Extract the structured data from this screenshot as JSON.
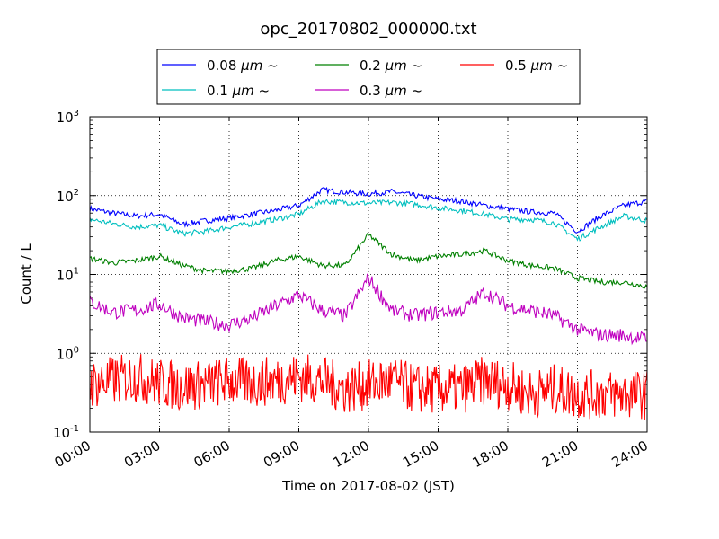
{
  "chart_data": {
    "type": "line",
    "title": "opc_20170802_000000.txt",
    "xlabel": "Time on 2017-08-02 (JST)",
    "ylabel": "Count / L",
    "yscale": "log",
    "ylim": [
      0.1,
      1000
    ],
    "xlim": [
      "00:00",
      "24:00"
    ],
    "grid": true,
    "legend_position": "top-center",
    "x_ticks": [
      "00:00",
      "03:00",
      "06:00",
      "09:00",
      "12:00",
      "15:00",
      "18:00",
      "21:00",
      "24:00"
    ],
    "y_ticks": [
      {
        "base": "10",
        "exp": "-1",
        "value": 0.1
      },
      {
        "base": "10",
        "exp": "0",
        "value": 1
      },
      {
        "base": "10",
        "exp": "1",
        "value": 10
      },
      {
        "base": "10",
        "exp": "2",
        "value": 100
      },
      {
        "base": "10",
        "exp": "3",
        "value": 1000
      }
    ],
    "x": [
      "00:00",
      "01:00",
      "02:00",
      "03:00",
      "04:00",
      "05:00",
      "06:00",
      "07:00",
      "08:00",
      "09:00",
      "10:00",
      "11:00",
      "12:00",
      "13:00",
      "14:00",
      "15:00",
      "16:00",
      "17:00",
      "18:00",
      "19:00",
      "20:00",
      "21:00",
      "22:00",
      "23:00",
      "24:00"
    ],
    "series": [
      {
        "name_prefix": "0.08 ",
        "name_suffix": " ~",
        "color": "#0000ff",
        "values": [
          68,
          60,
          55,
          58,
          43,
          48,
          52,
          58,
          65,
          75,
          118,
          110,
          105,
          112,
          100,
          90,
          85,
          75,
          68,
          62,
          60,
          35,
          55,
          75,
          85
        ]
      },
      {
        "name_prefix": "0.1 ",
        "name_suffix": " ~",
        "color": "#00bfbf",
        "values": [
          50,
          44,
          40,
          42,
          33,
          35,
          40,
          44,
          50,
          58,
          85,
          82,
          80,
          82,
          78,
          70,
          65,
          58,
          50,
          50,
          45,
          28,
          40,
          55,
          48
        ]
      },
      {
        "name_prefix": "0.2 ",
        "name_suffix": " ~",
        "color": "#008000",
        "values": [
          16,
          14,
          15,
          17,
          13,
          11,
          11,
          12,
          15,
          17,
          13,
          13,
          32,
          18,
          15,
          17,
          18,
          20,
          15,
          13,
          12,
          9,
          8,
          8,
          7
        ]
      },
      {
        "name_prefix": "0.3 ",
        "name_suffix": " ~",
        "color": "#bf00bf",
        "values": [
          4.5,
          3.3,
          3.5,
          4.2,
          2.8,
          2.5,
          2.3,
          2.8,
          4,
          5.5,
          3.5,
          3,
          9,
          3.5,
          3,
          3.3,
          3.5,
          6,
          4,
          3.5,
          3,
          2,
          1.7,
          1.7,
          1.5
        ]
      },
      {
        "name_prefix": "0.5 ",
        "name_suffix": " ~",
        "color": "#ff0000",
        "values": [
          0.4,
          0.45,
          0.5,
          0.42,
          0.38,
          0.4,
          0.45,
          0.42,
          0.45,
          0.5,
          0.45,
          0.35,
          0.4,
          0.45,
          0.35,
          0.35,
          0.35,
          0.45,
          0.4,
          0.3,
          0.35,
          0.3,
          0.3,
          0.3,
          0.3
        ]
      }
    ],
    "legend_unit": "μm"
  }
}
